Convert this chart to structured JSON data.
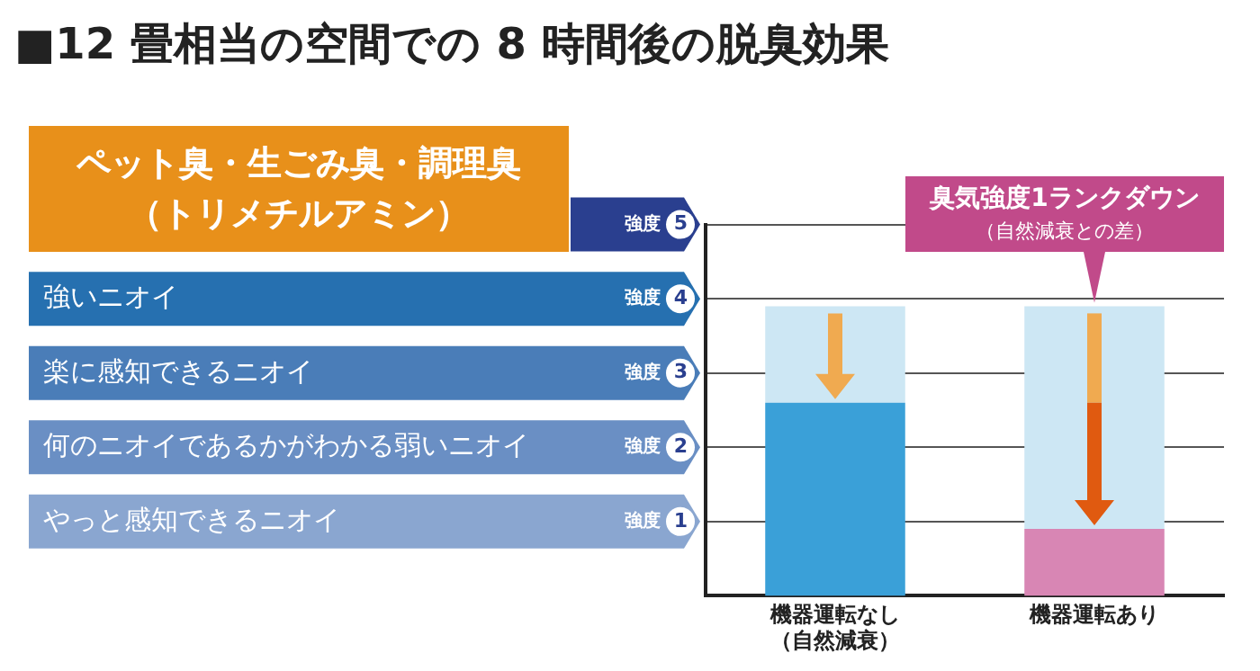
{
  "chart_data": {
    "type": "bar",
    "title": "■12 畳相当の空間での 8 時間後の脱臭効果",
    "categories": [
      "機器運転なし（自然減衰）",
      "機器運転あり"
    ],
    "series": [
      {
        "colors": [
          "#3aa0d8",
          "#d886b4"
        ],
        "values": [
          2.6,
          0.9
        ]
      },
      {
        "color": "#cde7f4",
        "values": [
          1.3,
          3.0
        ]
      }
    ],
    "stacked": true,
    "ylim": [
      0,
      5
    ],
    "yticks": [
      1,
      2,
      3,
      4,
      5
    ],
    "grid": "y",
    "legend": false,
    "annotations": [
      "ペット臭・生ごみ臭・調理臭（トリメチルアミン）",
      "強いニオイ",
      "楽に感知できるニオイ",
      "何のニオイであるかがわかる弱いニオイ",
      "やっと感知できるニオイ",
      "強度",
      "強度",
      "強度",
      "強度",
      "強度",
      "臭気強度1ランクダウン（自然減衰との差）"
    ]
  }
}
